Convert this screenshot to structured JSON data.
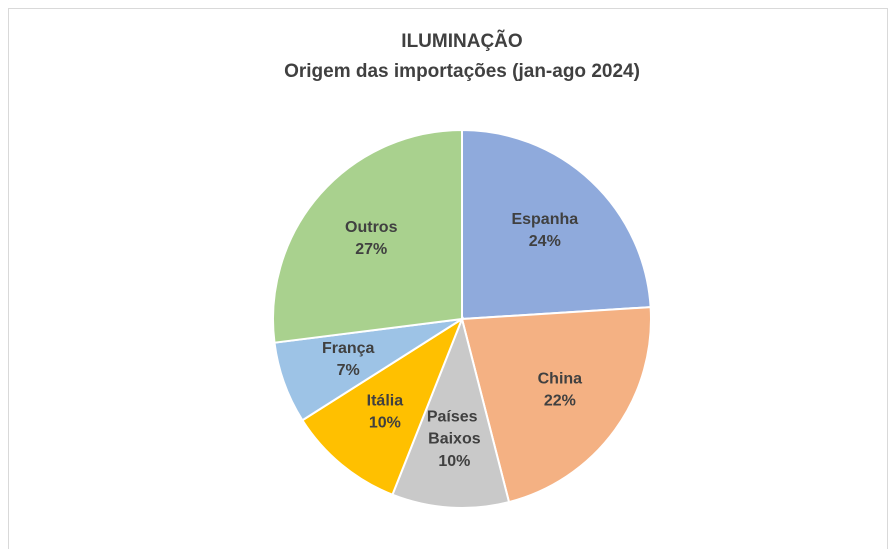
{
  "chart_data": {
    "type": "pie",
    "title": "ILUMINAÇÃO",
    "subtitle": "Origem das importações (jan-ago 2024)",
    "categories": [
      "Espanha",
      "China",
      "Países Baixos",
      "Itália",
      "França",
      "Outros"
    ],
    "values": [
      24,
      22,
      10,
      10,
      7,
      27
    ],
    "value_labels": [
      "24%",
      "22%",
      "10%",
      "10%",
      "7%",
      "27%"
    ],
    "colors": [
      "#8faadc",
      "#f4b183",
      "#c9c9c9",
      "#ffc000",
      "#9dc3e6",
      "#a9d18e"
    ]
  }
}
